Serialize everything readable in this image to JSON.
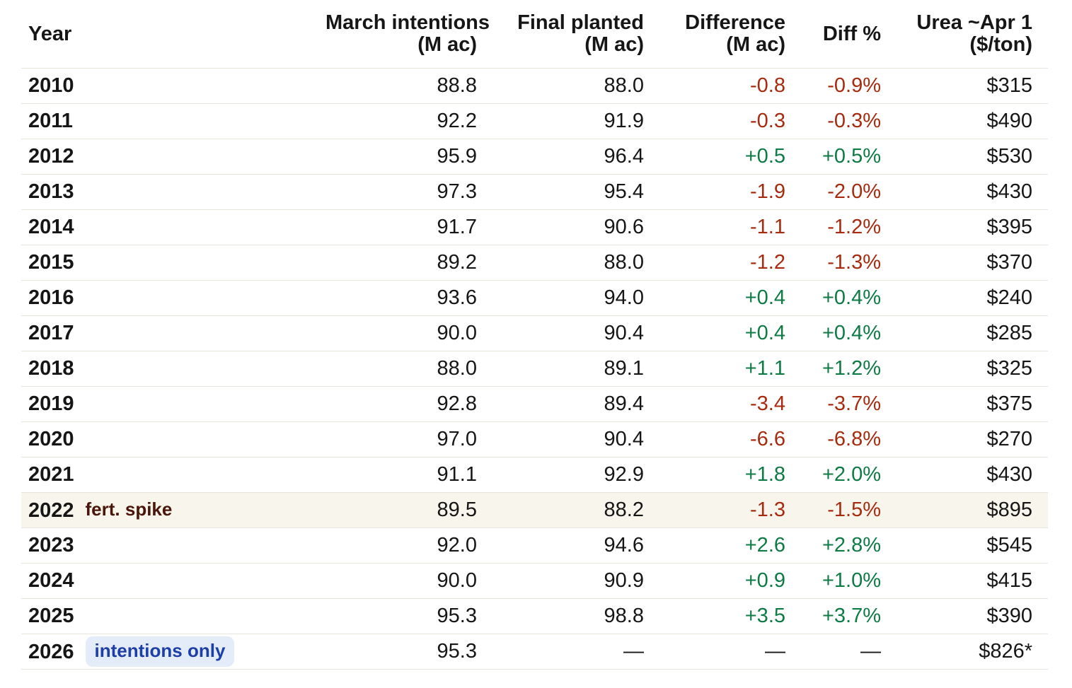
{
  "colors": {
    "positive": "#0e7b45",
    "negative": "#a62b0f",
    "maroon_note": "#4a150b",
    "badge_text": "#1d3fa6",
    "badge_bg": "#e4ebf9",
    "row_highlight": "#f8f5ec",
    "divider": "#e7e4de"
  },
  "chart_data": {
    "type": "table",
    "title": "",
    "columns": [
      {
        "id": "year",
        "line1": "Year",
        "line2": "",
        "align": "left"
      },
      {
        "id": "march",
        "line1": "March intentions",
        "line2": "(M ac)",
        "align": "right"
      },
      {
        "id": "final",
        "line1": "Final planted",
        "line2": "(M ac)",
        "align": "right"
      },
      {
        "id": "diff",
        "line1": "Difference",
        "line2": "(M ac)",
        "align": "right"
      },
      {
        "id": "diff_pct",
        "line1": "Diff %",
        "line2": "",
        "align": "right"
      },
      {
        "id": "urea",
        "line1": "Urea ~Apr 1",
        "line2": "($/ton)",
        "align": "right"
      }
    ],
    "rows": [
      {
        "year": "2010",
        "march": "88.8",
        "final": "88.0",
        "diff": "-0.8",
        "diff_pct": "-0.9%",
        "urea": "$315"
      },
      {
        "year": "2011",
        "march": "92.2",
        "final": "91.9",
        "diff": "-0.3",
        "diff_pct": "-0.3%",
        "urea": "$490"
      },
      {
        "year": "2012",
        "march": "95.9",
        "final": "96.4",
        "diff": "+0.5",
        "diff_pct": "+0.5%",
        "urea": "$530"
      },
      {
        "year": "2013",
        "march": "97.3",
        "final": "95.4",
        "diff": "-1.9",
        "diff_pct": "-2.0%",
        "urea": "$430"
      },
      {
        "year": "2014",
        "march": "91.7",
        "final": "90.6",
        "diff": "-1.1",
        "diff_pct": "-1.2%",
        "urea": "$395"
      },
      {
        "year": "2015",
        "march": "89.2",
        "final": "88.0",
        "diff": "-1.2",
        "diff_pct": "-1.3%",
        "urea": "$370"
      },
      {
        "year": "2016",
        "march": "93.6",
        "final": "94.0",
        "diff": "+0.4",
        "diff_pct": "+0.4%",
        "urea": "$240"
      },
      {
        "year": "2017",
        "march": "90.0",
        "final": "90.4",
        "diff": "+0.4",
        "diff_pct": "+0.4%",
        "urea": "$285"
      },
      {
        "year": "2018",
        "march": "88.0",
        "final": "89.1",
        "diff": "+1.1",
        "diff_pct": "+1.2%",
        "urea": "$325"
      },
      {
        "year": "2019",
        "march": "92.8",
        "final": "89.4",
        "diff": "-3.4",
        "diff_pct": "-3.7%",
        "urea": "$375"
      },
      {
        "year": "2020",
        "march": "97.0",
        "final": "90.4",
        "diff": "-6.6",
        "diff_pct": "-6.8%",
        "urea": "$270"
      },
      {
        "year": "2021",
        "march": "91.1",
        "final": "92.9",
        "diff": "+1.8",
        "diff_pct": "+2.0%",
        "urea": "$430"
      },
      {
        "year": "2022",
        "tag": {
          "text": "fert. spike",
          "style": "plain-maroon"
        },
        "highlight": true,
        "march": "89.5",
        "final": "88.2",
        "diff": "-1.3",
        "diff_pct": "-1.5%",
        "urea": "$895"
      },
      {
        "year": "2023",
        "march": "92.0",
        "final": "94.6",
        "diff": "+2.6",
        "diff_pct": "+2.8%",
        "urea": "$545"
      },
      {
        "year": "2024",
        "march": "90.0",
        "final": "90.9",
        "diff": "+0.9",
        "diff_pct": "+1.0%",
        "urea": "$415"
      },
      {
        "year": "2025",
        "march": "95.3",
        "final": "98.8",
        "diff": "+3.5",
        "diff_pct": "+3.7%",
        "urea": "$390"
      },
      {
        "year": "2026",
        "tag": {
          "text": "intentions only",
          "style": "badge-blue"
        },
        "march": "95.3",
        "final": "—",
        "diff": "—",
        "diff_pct": "—",
        "urea": "$826*"
      }
    ]
  }
}
